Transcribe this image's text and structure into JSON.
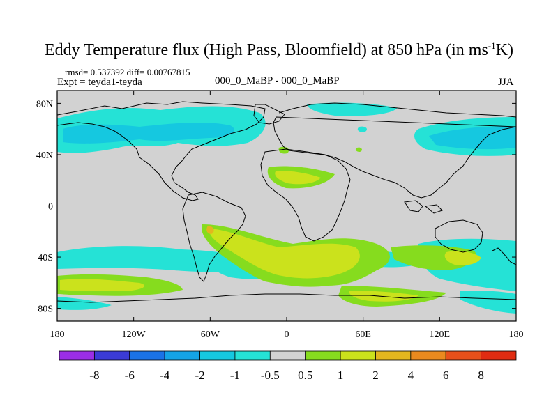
{
  "title": {
    "main": "Eddy Temperature flux (High Pass, Bloomfield) at 850 hPa (in ms",
    "sup": "-1",
    "end": "K)"
  },
  "header": {
    "rmsd_line": "rmsd= 0.537392 diff= 0.00767815",
    "expt_line": "Expt = teyda1-teyda",
    "center_label": "000_0_MaBP - 000_0_MaBP",
    "season": "JJA"
  },
  "map": {
    "lat_labels": [
      "80N",
      "40N",
      "0",
      "40S",
      "80S"
    ],
    "lat_values": [
      80,
      40,
      0,
      -40,
      -80
    ],
    "lon_labels": [
      "180",
      "120W",
      "60W",
      "0",
      "60E",
      "120E",
      "180"
    ],
    "lon_values": [
      -180,
      -120,
      -60,
      0,
      60,
      120,
      180
    ],
    "lat_range": [
      -90,
      90
    ],
    "lon_range": [
      -180,
      180
    ]
  },
  "colorbar": {
    "levels": [
      "-8",
      "-6",
      "-4",
      "-2",
      "-1",
      "-0.5",
      "0.5",
      "1",
      "2",
      "4",
      "6",
      "8"
    ],
    "colors": [
      "#9b2ee6",
      "#3b3bd6",
      "#1a72e6",
      "#14a3e6",
      "#15c8e0",
      "#25e2d6",
      "#d2d2d2",
      "#86dc1e",
      "#cbe21c",
      "#e3b61e",
      "#ea8a1e",
      "#e8501a",
      "#e02c12"
    ]
  },
  "field_colors": {
    "ocean_bg": "#d2d2d2",
    "neg_weak": "#25e2d6",
    "neg_mid": "#15c8e0",
    "pos_weak": "#86dc1e",
    "pos_mid": "#cbe21c",
    "pos_strong": "#e3b61e"
  }
}
